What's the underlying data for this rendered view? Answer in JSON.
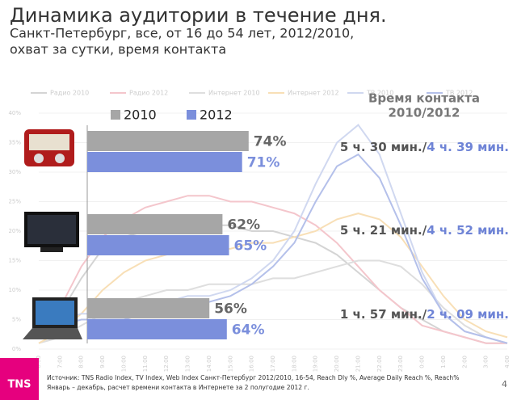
{
  "chart_data": [
    {
      "type": "line",
      "categories": [
        "6:00",
        "7:00",
        "8:00",
        "9:00",
        "10:00",
        "11:00",
        "12:00",
        "13:00",
        "14:00",
        "15:00",
        "16:00",
        "17:00",
        "18:00",
        "19:00",
        "20:00",
        "21:00",
        "22:00",
        "23:00",
        "0:00",
        "1:00",
        "2:00",
        "3:00",
        "4:00"
      ],
      "ylim": [
        0,
        40
      ],
      "yticks": [
        {
          "value": 0,
          "label": "0%"
        },
        {
          "value": 5,
          "label": "5%"
        },
        {
          "value": 10,
          "label": "10%"
        },
        {
          "value": 15,
          "label": "15%"
        },
        {
          "value": 20,
          "label": "20%"
        },
        {
          "value": 25,
          "label": "25%"
        },
        {
          "value": 30,
          "label": "30%"
        },
        {
          "value": 35,
          "label": "35%"
        },
        {
          "value": 40,
          "label": "40%"
        }
      ],
      "series": [
        {
          "name": "Радио 2010",
          "color": "#d4d4d4",
          "values": [
            2,
            6,
            12,
            17,
            19,
            20,
            21,
            21,
            21,
            21,
            20,
            20,
            19,
            18,
            16,
            13,
            10,
            7,
            5,
            3,
            2,
            1,
            1
          ]
        },
        {
          "name": "Радио 2012",
          "color": "#f4c6cc",
          "values": [
            2,
            7,
            14,
            19,
            22,
            24,
            25,
            26,
            26,
            25,
            25,
            24,
            23,
            21,
            18,
            14,
            10,
            7,
            4,
            3,
            2,
            1,
            1
          ]
        },
        {
          "name": "Интернет 2010",
          "color": "#dedede",
          "values": [
            1,
            2,
            4,
            6,
            8,
            9,
            10,
            10,
            11,
            11,
            11,
            12,
            12,
            13,
            14,
            15,
            15,
            14,
            11,
            7,
            4,
            2,
            1
          ]
        },
        {
          "name": "Интернет 2012",
          "color": "#f8dfb6",
          "values": [
            1,
            3,
            6,
            10,
            13,
            15,
            16,
            17,
            17,
            17,
            18,
            18,
            19,
            20,
            22,
            23,
            22,
            19,
            14,
            9,
            5,
            3,
            2
          ]
        },
        {
          "name": "ТВ 2010",
          "color": "#d0d8f0",
          "values": [
            2,
            5,
            6,
            6,
            6,
            7,
            8,
            9,
            9,
            10,
            12,
            15,
            20,
            28,
            35,
            38,
            33,
            23,
            13,
            6,
            3,
            2,
            1
          ]
        },
        {
          "name": "ТВ 2012",
          "color": "#b4c0ea",
          "values": [
            2,
            4,
            5,
            5,
            5,
            6,
            7,
            8,
            8,
            9,
            11,
            14,
            18,
            25,
            31,
            33,
            29,
            21,
            12,
            6,
            3,
            2,
            1
          ]
        }
      ]
    },
    {
      "type": "hbar",
      "title": "Динамика аудитории в течение дня.",
      "subtitle": [
        "Санкт-Петербург, все, от 16 до 54 лет, 2012/2010,",
        "охват за сутки, время контакта"
      ],
      "categories": [
        null,
        null,
        null
      ],
      "xlim": [
        0,
        100
      ],
      "series": [
        {
          "name": "2010",
          "color": "#a6a6a6",
          "values": [
            74,
            62,
            56
          ],
          "value_labels": [
            "74%",
            "62%",
            "56%"
          ]
        },
        {
          "name": "2012",
          "color": "#7b8fdc",
          "values": [
            71,
            65,
            64
          ],
          "value_labels": [
            "71%",
            "65%",
            "64%"
          ]
        }
      ],
      "contact_time": {
        "title": [
          "Время контакта",
          "2010/2012"
        ],
        "t2010": [
          "5 ч. 30 мин./",
          "5 ч. 21 мин./",
          "1 ч. 57 мин./"
        ],
        "t2012": [
          "4 ч. 39 мин.",
          "4 ч. 52 мин.",
          "2 ч. 09 мин."
        ]
      }
    }
  ],
  "footer": {
    "logo": "TNS",
    "source": "Источник: TNS Radio Index, TV Index, Web Index Санкт-Петербург 2012/2010, 16-54, Reach Dly %, Average Daily Reach %, Reach%",
    "note": "Январь – декабрь, расчет времени контакта в Интернете за 2 полугодие 2012 г.",
    "page": "4"
  }
}
